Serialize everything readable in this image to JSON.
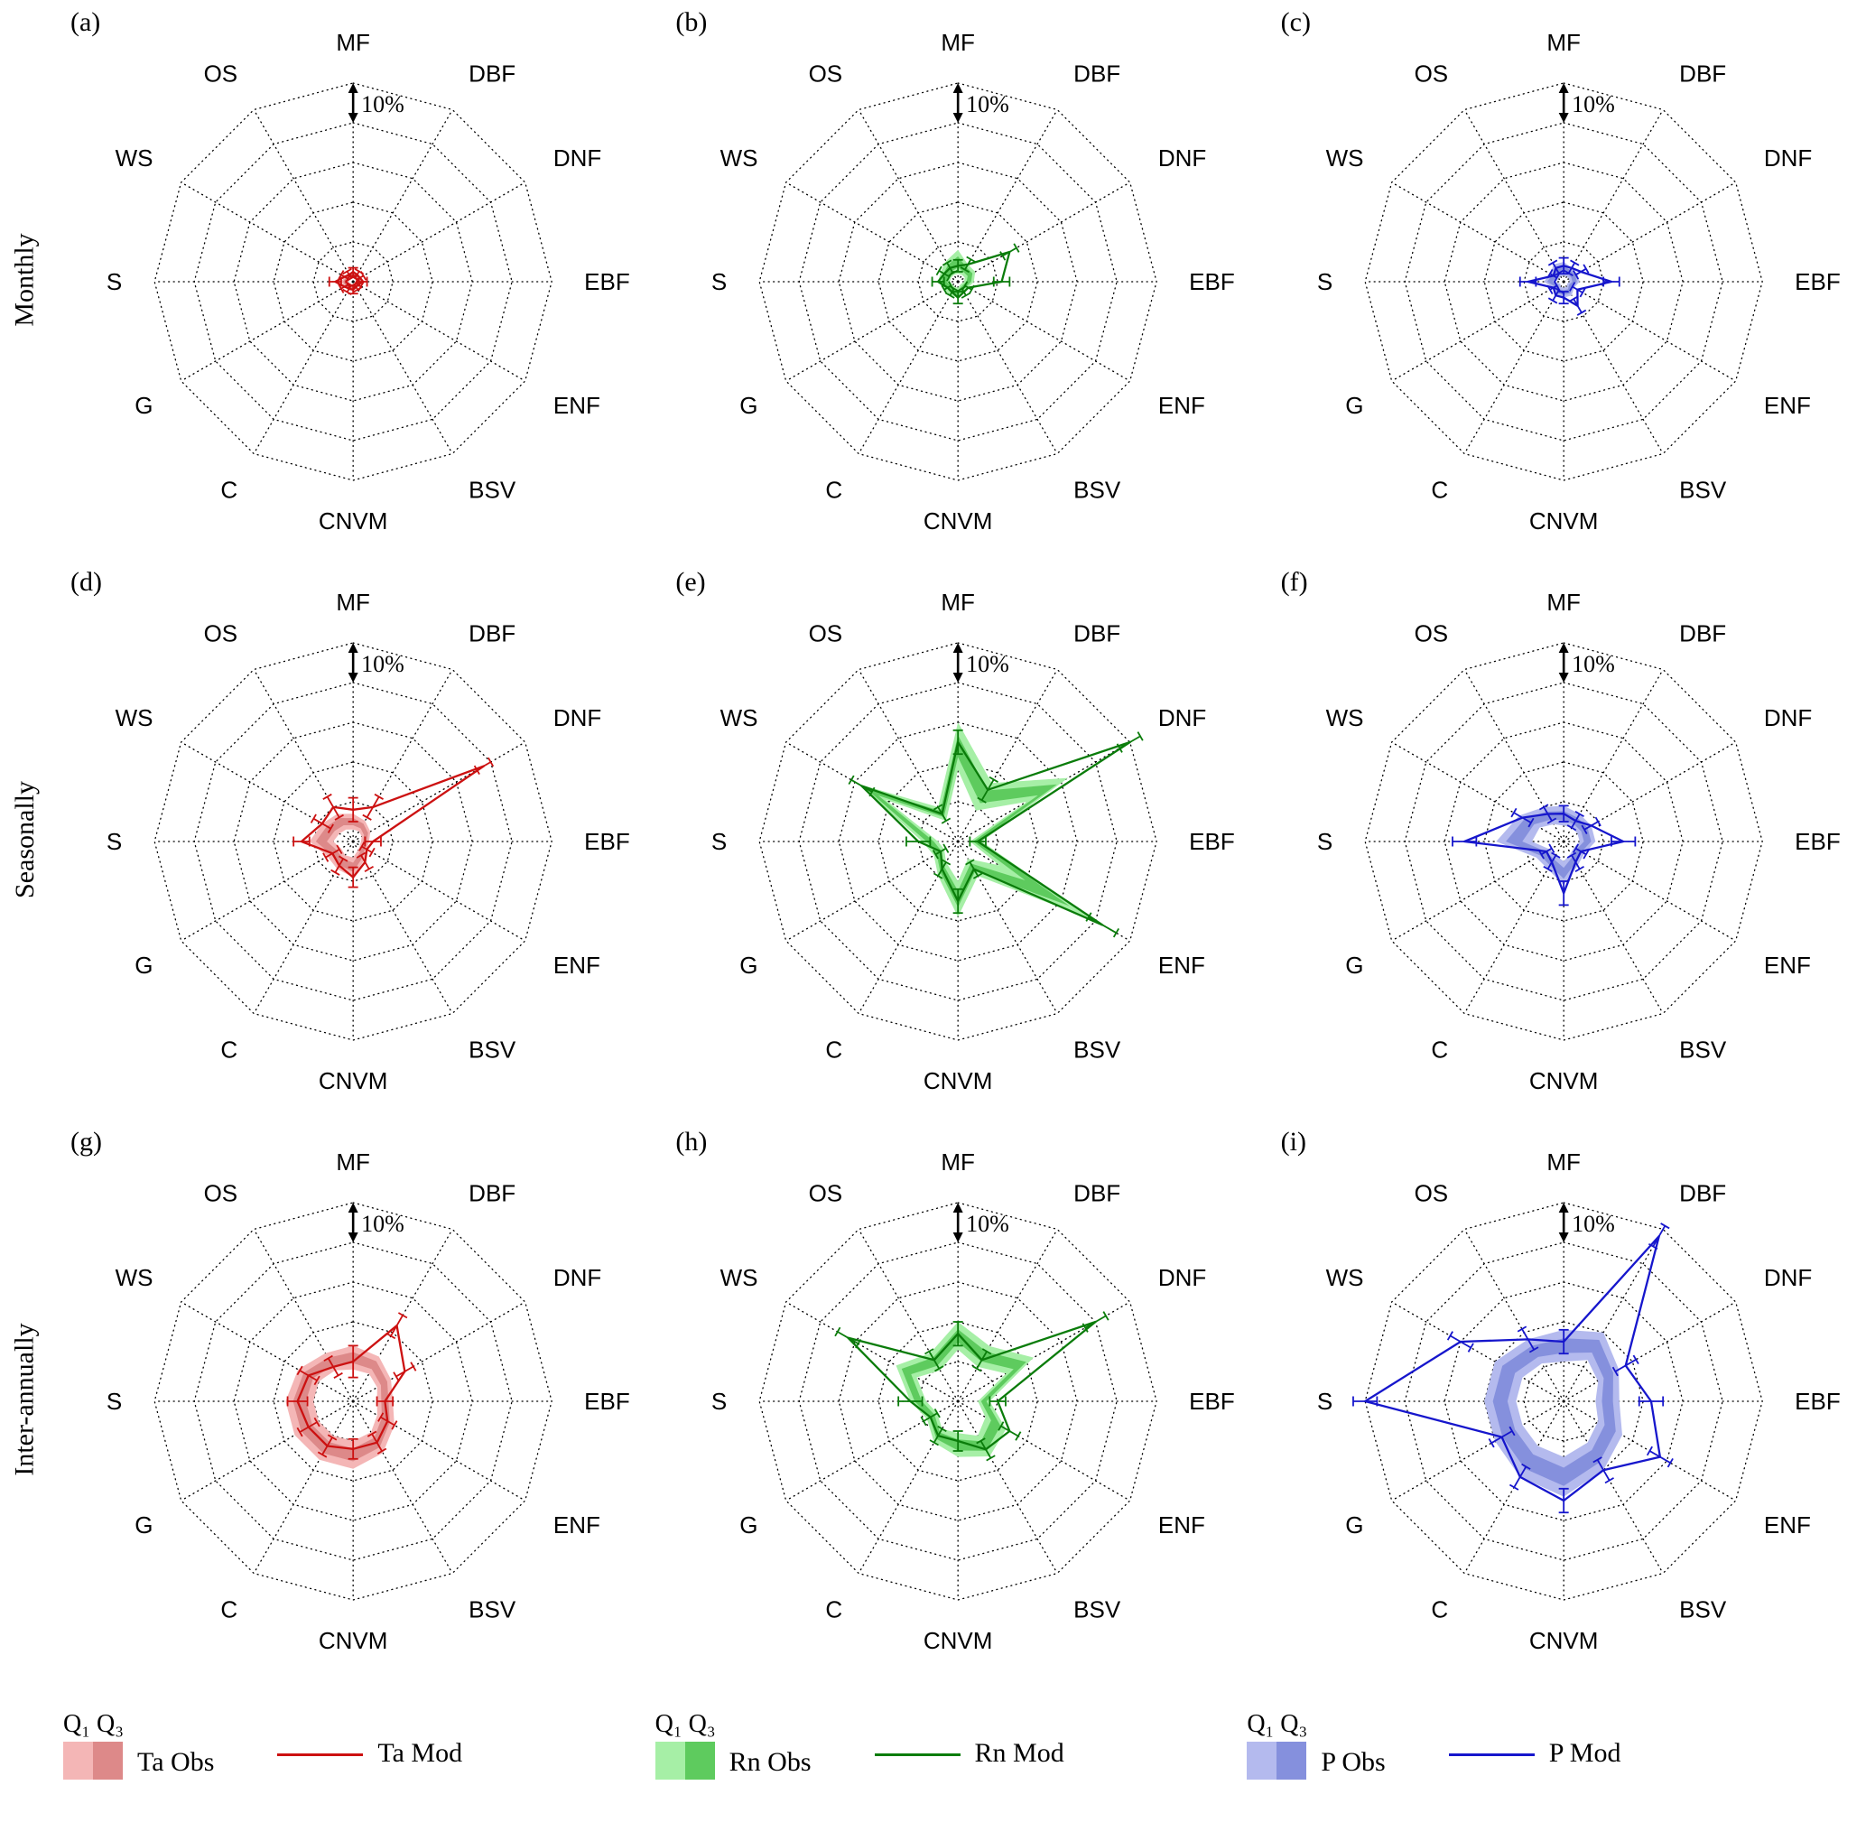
{
  "rows": [
    "Monthly",
    "Seasonally",
    "Inter-annually"
  ],
  "legend": {
    "groups": [
      {
        "q_label": "Q₁ Q₃",
        "obs_label": "Ta Obs",
        "mod_label": "Ta Mod",
        "color": "red"
      },
      {
        "q_label": "Q₁ Q₃",
        "obs_label": "Rn Obs",
        "mod_label": "Rn Mod",
        "color": "green"
      },
      {
        "q_label": "Q₁ Q₃",
        "obs_label": "P Obs",
        "mod_label": "P Mod",
        "color": "blue"
      }
    ]
  },
  "chart_data": {
    "type": "radar",
    "grid": "dotted-polygon",
    "categories": [
      "MF",
      "DBF",
      "DNF",
      "EBF",
      "ENF",
      "BSV",
      "CNVM",
      "C",
      "G",
      "S",
      "WS",
      "OS"
    ],
    "ring_step_pct": 10,
    "rings": 5,
    "max_pct": 50,
    "scale_label": "10%",
    "unit": "percent",
    "colors": {
      "red": {
        "line": "#cc1111",
        "band_light": "#f4b6b6",
        "band_dark": "#dd8989"
      },
      "green": {
        "line": "#0a7c0a",
        "band_light": "#a6efa6",
        "band_dark": "#5ecb5e"
      },
      "blue": {
        "line": "#1616cc",
        "band_light": "#b4baee",
        "band_dark": "#8590dd"
      }
    },
    "panels": [
      {
        "label": "(a)",
        "row": "Monthly",
        "color": "red",
        "obs_q1": [
          1,
          1,
          1,
          0.8,
          0.8,
          0.8,
          1,
          1,
          1,
          1.2,
          1,
          1
        ],
        "obs_q3": [
          2.5,
          2.5,
          2,
          2,
          1.8,
          1.8,
          2.5,
          2.5,
          2.5,
          3,
          2.5,
          2.5
        ],
        "mod": [
          2.5,
          2,
          2,
          2.5,
          1.5,
          1.5,
          2,
          2,
          2.5,
          4.5,
          2.5,
          2
        ],
        "mod_err": [
          1,
          1,
          1,
          1,
          0.8,
          0.8,
          1,
          1,
          1,
          1.5,
          1,
          1
        ]
      },
      {
        "label": "(b)",
        "row": "Monthly",
        "color": "green",
        "obs_q1": [
          2,
          2,
          2,
          1.5,
          1,
          1,
          1.5,
          1.5,
          1.5,
          2,
          2,
          2
        ],
        "obs_q3": [
          8,
          5,
          5,
          4,
          3,
          3,
          4,
          4,
          4,
          5,
          5,
          6
        ],
        "mod": [
          4,
          5,
          15,
          11,
          3,
          3,
          4,
          3,
          3,
          5,
          4,
          4
        ],
        "mod_err": [
          1.5,
          1.5,
          2,
          2,
          1,
          1,
          1.5,
          1,
          1,
          1.5,
          1.5,
          1.5
        ]
      },
      {
        "label": "(c)",
        "row": "Monthly",
        "color": "blue",
        "obs_q1": [
          1.5,
          1.5,
          1.5,
          1.5,
          1,
          1.5,
          1.5,
          1.5,
          1,
          2,
          1.5,
          1.5
        ],
        "obs_q3": [
          5,
          4,
          4,
          4,
          3,
          4,
          4,
          4,
          3,
          5,
          4,
          5
        ],
        "mod": [
          4,
          4,
          5,
          12,
          4,
          7,
          4,
          4,
          3,
          9,
          3,
          4
        ],
        "mod_err": [
          2,
          1.5,
          1.5,
          2,
          1.5,
          2,
          1.5,
          1.5,
          1,
          2,
          1,
          1.5
        ]
      },
      {
        "label": "(d)",
        "row": "Seasonally",
        "color": "red",
        "obs_q1": [
          3,
          3,
          2.5,
          2,
          2,
          2.5,
          4,
          4,
          3.5,
          5,
          4,
          3.5
        ],
        "obs_q3": [
          7,
          6,
          5,
          4,
          4,
          5.5,
          9,
          8,
          7.5,
          11,
          9,
          8
        ],
        "mod": [
          8,
          10,
          38,
          5,
          4,
          6,
          9,
          7,
          6,
          13,
          9,
          10
        ],
        "mod_err": [
          3,
          3,
          2,
          2,
          1.5,
          2,
          2.5,
          2,
          2,
          2,
          2.5,
          3
        ]
      },
      {
        "label": "(e)",
        "row": "Seasonally",
        "color": "green",
        "obs_q1": [
          18,
          9,
          20,
          3,
          12,
          5,
          10,
          6,
          4,
          5,
          21,
          6
        ],
        "obs_q3": [
          30,
          17,
          32,
          6,
          40,
          10,
          19,
          10,
          7,
          9,
          29,
          10
        ],
        "mod": [
          25,
          15,
          50,
          5,
          42,
          8,
          15,
          8,
          5,
          10,
          28,
          8
        ],
        "mod_err": [
          3,
          3,
          3,
          2,
          4,
          2,
          3,
          2,
          1.5,
          3,
          3,
          2
        ]
      },
      {
        "label": "(f)",
        "row": "Seasonally",
        "color": "blue",
        "obs_q1": [
          4,
          4,
          4,
          4,
          3,
          3.5,
          5,
          4,
          4,
          8,
          7,
          5
        ],
        "obs_q3": [
          9,
          8,
          8,
          8,
          6,
          7,
          11,
          8,
          8,
          17,
          13,
          10
        ],
        "mod": [
          7,
          6,
          8,
          15,
          5,
          6,
          13,
          6,
          5,
          25,
          12,
          8
        ],
        "mod_err": [
          2,
          2,
          2,
          3,
          1.5,
          2,
          3,
          2,
          1.5,
          3,
          2.5,
          2
        ]
      },
      {
        "label": "(g)",
        "row": "Inter-annually",
        "color": "red",
        "obs_q1": [
          8,
          8,
          7,
          6,
          7,
          9,
          10,
          10,
          10,
          10,
          10,
          9
        ],
        "obs_q3": [
          14,
          13,
          11,
          10,
          12,
          15,
          17,
          17,
          17,
          17,
          16,
          14
        ],
        "mod": [
          10,
          22,
          15,
          8,
          10,
          12,
          12,
          13,
          13,
          14,
          13,
          10
        ],
        "mod_err": [
          4,
          3,
          2.5,
          2,
          2,
          2.5,
          2.5,
          2.5,
          2.5,
          2.5,
          2.5,
          2.5
        ]
      },
      {
        "label": "(h)",
        "row": "Inter-annually",
        "color": "green",
        "obs_q1": [
          13,
          10,
          14,
          5,
          8,
          10,
          8,
          8,
          6,
          8,
          12,
          9
        ],
        "obs_q3": [
          20,
          16,
          22,
          8,
          14,
          16,
          14,
          12,
          9,
          12,
          18,
          14
        ],
        "mod": [
          17,
          12,
          40,
          10,
          15,
          14,
          10,
          10,
          8,
          12,
          32,
          12
        ],
        "mod_err": [
          3,
          2.5,
          3,
          2,
          2.5,
          2.5,
          2.5,
          2,
          2,
          3,
          3,
          2.5
        ]
      },
      {
        "label": "(i)",
        "row": "Inter-annually",
        "color": "blue",
        "obs_q1": [
          10,
          12,
          10,
          8,
          10,
          12,
          14,
          13,
          12,
          12,
          12,
          11
        ],
        "obs_q3": [
          18,
          20,
          16,
          14,
          17,
          20,
          24,
          22,
          20,
          20,
          20,
          18
        ],
        "mod": [
          15,
          48,
          18,
          22,
          28,
          20,
          25,
          22,
          18,
          50,
          30,
          18
        ],
        "mod_err": [
          3,
          3,
          3,
          3,
          3,
          3,
          3,
          3,
          3,
          3,
          3,
          3
        ]
      }
    ]
  }
}
